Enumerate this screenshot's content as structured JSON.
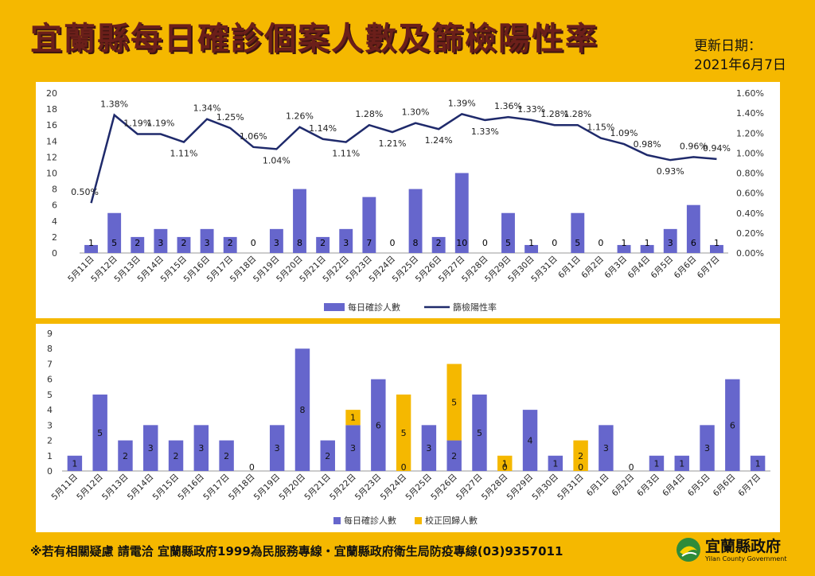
{
  "header": {
    "title": "宜蘭縣每日確診個案人數及篩檢陽性率",
    "update_label": "更新日期：",
    "update_date": "2021年6月7日"
  },
  "footer": {
    "contact": "※若有相關疑慮 請電洽  宜蘭縣政府1999為民服務專線・宜蘭縣政府衛生局防疫專線(03)9357011"
  },
  "logo": {
    "name": "宜蘭縣政府",
    "subtitle": "Yilan County Government"
  },
  "colors": {
    "bar": "#6666cc",
    "line": "#1f2a6b",
    "orange": "#f5b800"
  },
  "chart_data": [
    {
      "type": "bar",
      "categories": [
        "5月11日",
        "5月12日",
        "5月13日",
        "5月14日",
        "5月15日",
        "5月16日",
        "5月17日",
        "5月18日",
        "5月19日",
        "5月20日",
        "5月21日",
        "5月22日",
        "5月23日",
        "5月24日",
        "5月25日",
        "5月26日",
        "5月27日",
        "5月28日",
        "5月29日",
        "5月30日",
        "5月31日",
        "6月1日",
        "6月2日",
        "6月3日",
        "6月4日",
        "6月5日",
        "6月6日",
        "6月7日"
      ],
      "series": [
        {
          "name": "每日確診人數",
          "type": "bar",
          "axis": "left",
          "values": [
            1,
            5,
            2,
            3,
            2,
            3,
            2,
            0,
            3,
            8,
            2,
            3,
            7,
            0,
            8,
            2,
            10,
            0,
            5,
            1,
            0,
            5,
            0,
            1,
            1,
            3,
            6,
            1
          ]
        },
        {
          "name": "篩檢陽性率",
          "type": "line",
          "axis": "right",
          "values": [
            0.5,
            1.38,
            1.19,
            1.19,
            1.11,
            1.34,
            1.25,
            1.06,
            1.04,
            1.26,
            1.14,
            1.11,
            1.28,
            1.21,
            1.3,
            1.24,
            1.39,
            1.33,
            1.36,
            1.33,
            1.28,
            1.28,
            1.15,
            1.09,
            0.98,
            0.93,
            0.96,
            0.94
          ],
          "labels": [
            "0.50%",
            "1.38%",
            "1.19%",
            "1.19%",
            "1.11%",
            "1.34%",
            "1.25%",
            "1.06%",
            "1.04%",
            "1.26%",
            "1.14%",
            "1.11%",
            "1.28%",
            "1.21%",
            "1.30%",
            "1.24%",
            "1.39%",
            "1.33%",
            "1.36%",
            "1.33%",
            "1.28%",
            "1.28%",
            "1.15%",
            "1.09%",
            "0.98%",
            "0.93%",
            "0.96%",
            "0.94%"
          ]
        }
      ],
      "ylim": [
        0,
        20
      ],
      "y_ticks": [
        "0",
        "2",
        "4",
        "6",
        "8",
        "10",
        "12",
        "14",
        "16",
        "18",
        "20"
      ],
      "y2lim": [
        0,
        1.6
      ],
      "y2_ticks": [
        "0.00%",
        "0.20%",
        "0.40%",
        "0.60%",
        "0.80%",
        "1.00%",
        "1.20%",
        "1.40%",
        "1.60%"
      ],
      "legend_position": "bottom",
      "grid": false
    },
    {
      "type": "bar",
      "stacked": true,
      "categories": [
        "5月11日",
        "5月12日",
        "5月13日",
        "5月14日",
        "5月15日",
        "5月16日",
        "5月17日",
        "5月18日",
        "5月19日",
        "5月20日",
        "5月21日",
        "5月22日",
        "5月23日",
        "5月24日",
        "5月25日",
        "5月26日",
        "5月27日",
        "5月28日",
        "5月29日",
        "5月30日",
        "5月31日",
        "6月1日",
        "6月2日",
        "6月3日",
        "6月4日",
        "6月5日",
        "6月6日",
        "6月7日"
      ],
      "series": [
        {
          "name": "每日確診人數",
          "values": [
            1,
            5,
            2,
            3,
            2,
            3,
            2,
            0,
            3,
            8,
            2,
            3,
            6,
            0,
            3,
            2,
            5,
            0,
            4,
            1,
            0,
            3,
            0,
            1,
            1,
            3,
            6,
            1
          ]
        },
        {
          "name": "校正回歸人數",
          "values": [
            0,
            0,
            0,
            0,
            0,
            0,
            0,
            0,
            0,
            0,
            0,
            1,
            0,
            5,
            0,
            5,
            0,
            1,
            0,
            0,
            2,
            0,
            0,
            0,
            0,
            0,
            0,
            0
          ]
        }
      ],
      "ylim": [
        0,
        9
      ],
      "y_ticks": [
        "0",
        "1",
        "2",
        "3",
        "4",
        "5",
        "6",
        "7",
        "8",
        "9"
      ],
      "legend_position": "bottom",
      "grid": false
    }
  ]
}
